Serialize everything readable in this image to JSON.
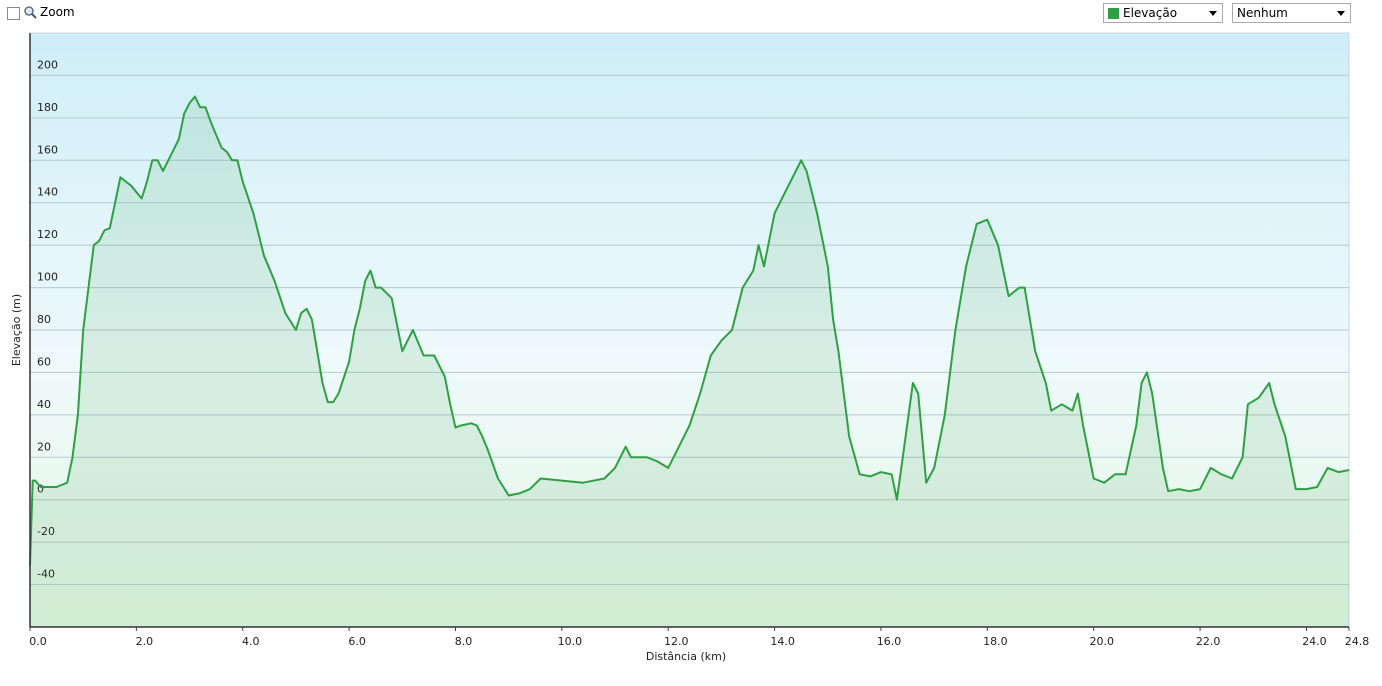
{
  "ui": {
    "zoom_label": "Zoom",
    "secondary_select": "Nenhum"
  },
  "chart_data": {
    "type": "area",
    "xlabel": "Distância  (km)",
    "ylabel": "Elevação (m)",
    "x": [
      0,
      0.05,
      0.1,
      0.2,
      0.5,
      0.7,
      0.8,
      0.9,
      1.0,
      1.1,
      1.2,
      1.3,
      1.4,
      1.5,
      1.6,
      1.7,
      1.8,
      1.9,
      2.0,
      2.1,
      2.2,
      2.3,
      2.4,
      2.5,
      2.6,
      2.7,
      2.8,
      2.9,
      3.0,
      3.1,
      3.2,
      3.3,
      3.4,
      3.5,
      3.6,
      3.7,
      3.8,
      3.9,
      4.0,
      4.2,
      4.4,
      4.6,
      4.8,
      5.0,
      5.1,
      5.2,
      5.3,
      5.4,
      5.5,
      5.6,
      5.7,
      5.8,
      6.0,
      6.1,
      6.2,
      6.3,
      6.4,
      6.5,
      6.6,
      6.8,
      7.0,
      7.2,
      7.4,
      7.6,
      7.8,
      7.9,
      8.0,
      8.1,
      8.3,
      8.4,
      8.5,
      8.6,
      8.8,
      9.0,
      9.2,
      9.4,
      9.6,
      10.0,
      10.4,
      10.8,
      11.0,
      11.2,
      11.3,
      11.6,
      11.8,
      12.0,
      12.2,
      12.4,
      12.6,
      12.8,
      13.0,
      13.2,
      13.4,
      13.6,
      13.7,
      13.8,
      14.0,
      14.2,
      14.4,
      14.5,
      14.6,
      14.8,
      15.0,
      15.1,
      15.2,
      15.4,
      15.6,
      15.8,
      16.0,
      16.2,
      16.3,
      16.4,
      16.6,
      16.7,
      16.85,
      17.0,
      17.2,
      17.4,
      17.6,
      17.8,
      18.0,
      18.2,
      18.4,
      18.6,
      18.7,
      18.9,
      19.1,
      19.2,
      19.4,
      19.6,
      19.7,
      19.8,
      20.0,
      20.2,
      20.4,
      20.6,
      20.8,
      20.9,
      21.0,
      21.1,
      21.3,
      21.4,
      21.6,
      21.8,
      22.0,
      22.2,
      22.4,
      22.6,
      22.8,
      22.9,
      23.1,
      23.3,
      23.4,
      23.6,
      23.8,
      24.0,
      24.2,
      24.4,
      24.6,
      24.8
    ],
    "series": [
      {
        "name": "Elevação",
        "color": "#2ea043",
        "values": [
          -31,
          9,
          9,
          6,
          6,
          8,
          20,
          40,
          80,
          100,
          120,
          122,
          127,
          128,
          140,
          152,
          150,
          148,
          145,
          142,
          150,
          160,
          160,
          155,
          160,
          165,
          170,
          182,
          187,
          190,
          185,
          185,
          178,
          172,
          166,
          164,
          160,
          160,
          150,
          135,
          115,
          103,
          88,
          80,
          88,
          90,
          85,
          70,
          55,
          46,
          46,
          50,
          65,
          80,
          90,
          103,
          108,
          100,
          100,
          95,
          70,
          80,
          68,
          68,
          58,
          45,
          34,
          35,
          36,
          35,
          30,
          24,
          10,
          2,
          3,
          5,
          10,
          9,
          8,
          10,
          15,
          25,
          20,
          20,
          18,
          15,
          25,
          35,
          50,
          68,
          75,
          80,
          100,
          108,
          120,
          110,
          135,
          145,
          155,
          160,
          155,
          135,
          110,
          85,
          70,
          30,
          12,
          11,
          13,
          12,
          0,
          18,
          55,
          50,
          8,
          15,
          40,
          80,
          110,
          130,
          132,
          120,
          96,
          100,
          100,
          70,
          55,
          42,
          45,
          42,
          50,
          35,
          10,
          8,
          12,
          12,
          35,
          55,
          60,
          50,
          15,
          4,
          5,
          4,
          5,
          15,
          12,
          10,
          20,
          45,
          48,
          55,
          45,
          30,
          5,
          5,
          6,
          15,
          13,
          14
        ]
      }
    ],
    "xlim": [
      0,
      24.8
    ],
    "xticks": [
      {
        "value": 0,
        "label": "0.0"
      },
      {
        "value": 2,
        "label": "2.0"
      },
      {
        "value": 4,
        "label": "4.0"
      },
      {
        "value": 6,
        "label": "6.0"
      },
      {
        "value": 8,
        "label": "8.0"
      },
      {
        "value": 10,
        "label": "10.0"
      },
      {
        "value": 12,
        "label": "12.0"
      },
      {
        "value": 14,
        "label": "14.0"
      },
      {
        "value": 16,
        "label": "16.0"
      },
      {
        "value": 18,
        "label": "18.0"
      },
      {
        "value": 20,
        "label": "20.0"
      },
      {
        "value": 22,
        "label": "22.0"
      },
      {
        "value": 24,
        "label": "24.0"
      },
      {
        "value": 24.8,
        "label": "24.8"
      }
    ],
    "ylim": [
      -60,
      220
    ],
    "yticks": [
      -40,
      -20,
      0,
      20,
      40,
      60,
      80,
      100,
      120,
      140,
      160,
      180,
      200
    ],
    "grid": true
  }
}
